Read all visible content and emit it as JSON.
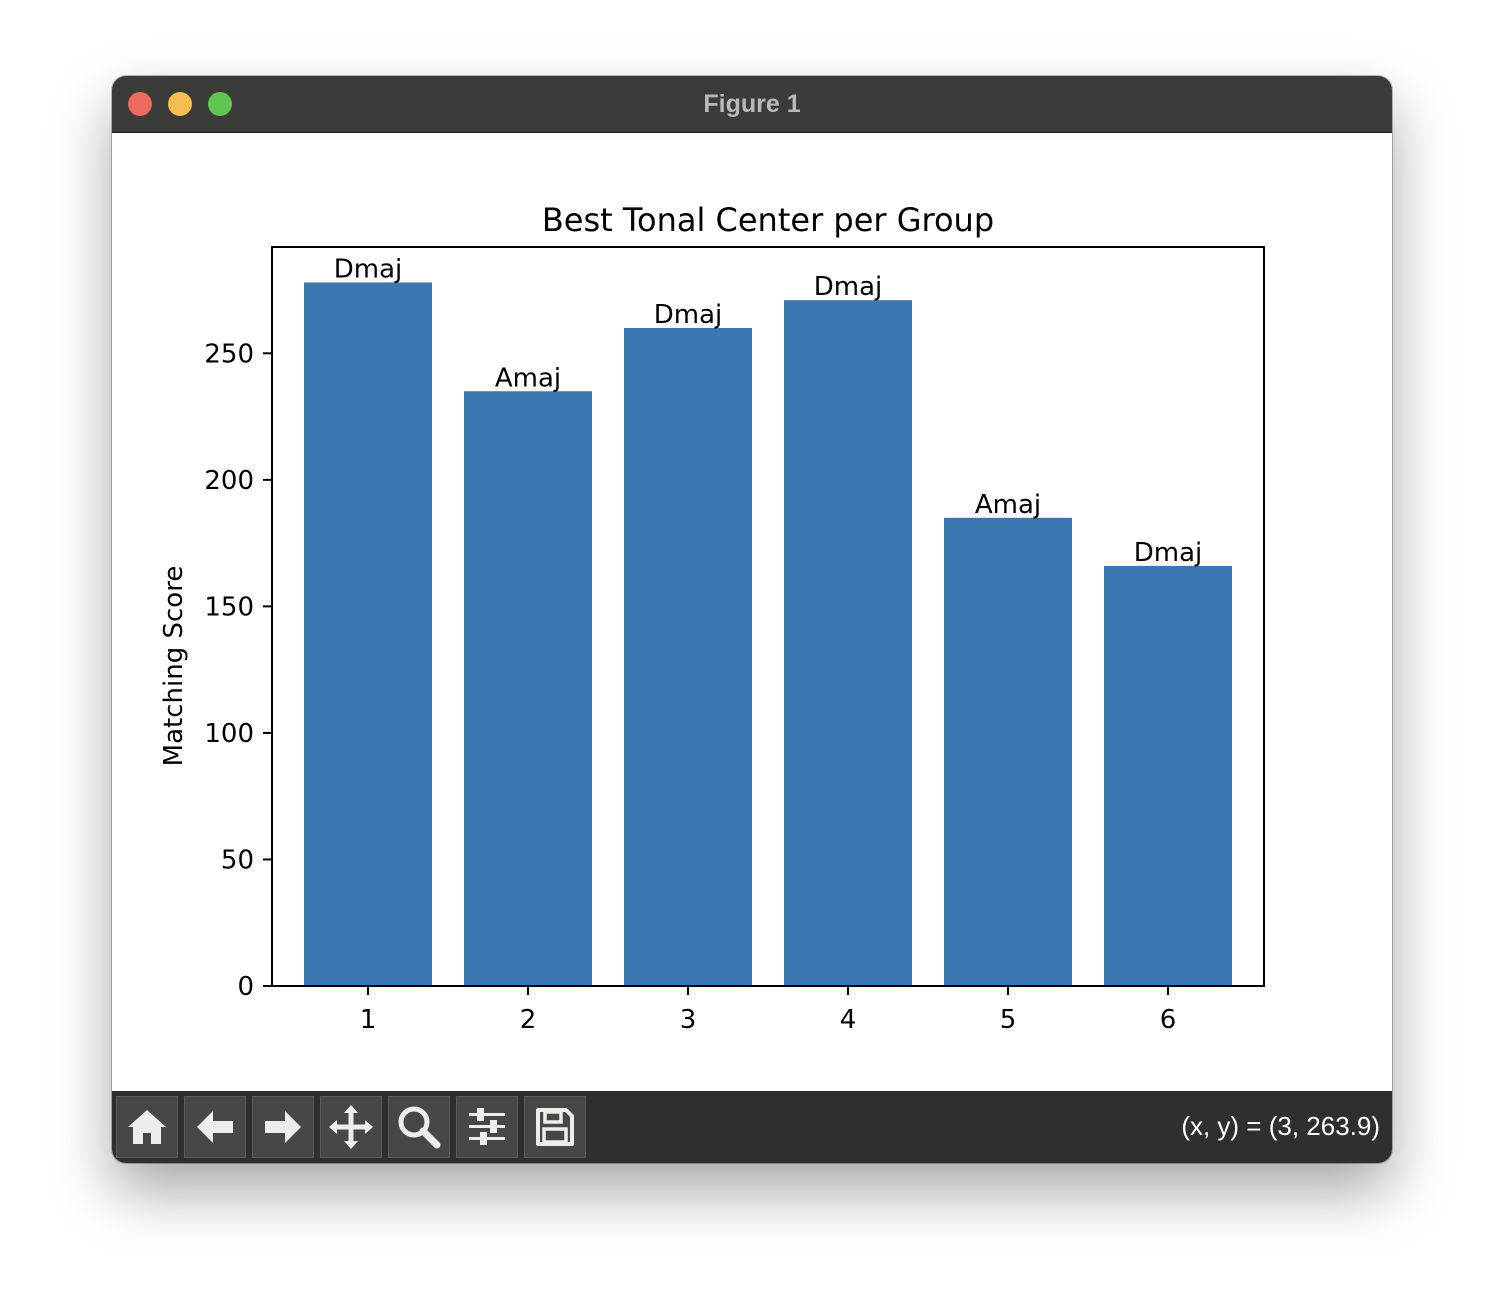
{
  "window": {
    "title": "Figure 1"
  },
  "toolbar": {
    "buttons": [
      {
        "name": "home-button",
        "icon": "home-icon"
      },
      {
        "name": "back-button",
        "icon": "arrow-left-icon"
      },
      {
        "name": "forward-button",
        "icon": "arrow-right-icon"
      },
      {
        "name": "pan-button",
        "icon": "move-icon"
      },
      {
        "name": "zoom-button",
        "icon": "magnifier-icon"
      },
      {
        "name": "configure-subplots-button",
        "icon": "sliders-icon"
      },
      {
        "name": "save-button",
        "icon": "floppy-disk-icon"
      }
    ],
    "coords": "(x, y) = (3, 263.9)"
  },
  "chart_data": {
    "type": "bar",
    "title": "Best Tonal Center per Group",
    "xlabel": "",
    "ylabel": "Matching Score",
    "categories": [
      "1",
      "2",
      "3",
      "4",
      "5",
      "6"
    ],
    "values": [
      278,
      235,
      260,
      271,
      185,
      166
    ],
    "bar_labels": [
      "Dmaj",
      "Amaj",
      "Dmaj",
      "Dmaj",
      "Amaj",
      "Dmaj"
    ],
    "ylim": [
      0,
      292
    ],
    "yticks": [
      0,
      50,
      100,
      150,
      200,
      250
    ],
    "bar_color": "#3a76af",
    "grid": false
  }
}
